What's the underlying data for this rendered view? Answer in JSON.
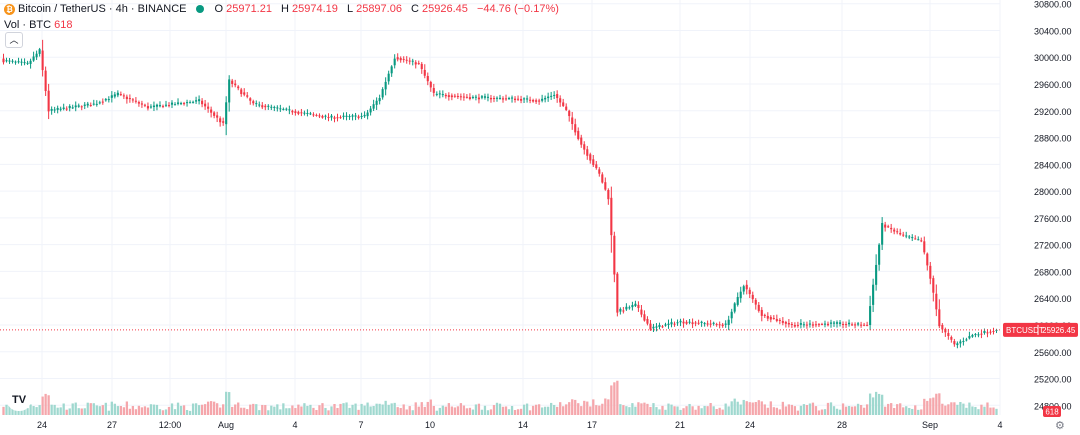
{
  "header": {
    "coin_glyph": "₿",
    "symbol": "Bitcoin / TetherUS · 4h · BINANCE",
    "ohlc": [
      {
        "label": "O",
        "value": "25971.21"
      },
      {
        "label": "H",
        "value": "25974.19"
      },
      {
        "label": "L",
        "value": "25897.06"
      },
      {
        "label": "C",
        "value": "25926.45"
      }
    ],
    "change": "−44.76 (−0.17%)"
  },
  "volume_legend": {
    "label": "Vol · BTC",
    "value": "618"
  },
  "collapse_glyph": "︿",
  "logo_text": "TV",
  "settings_glyph": "⚙",
  "colors": {
    "up": "#089981",
    "down": "#f23645",
    "up_vol": "#9fd8cf",
    "down_vol": "#f5a6ab"
  },
  "price_axis": {
    "labels": [
      "30800.00",
      "30400.00",
      "30000.00",
      "29600.00",
      "29200.00",
      "28800.00",
      "28400.00",
      "28000.00",
      "27600.00",
      "27200.00",
      "26800.00",
      "26400.00",
      "26000.00",
      "25600.00",
      "25200.00",
      "24800.00"
    ],
    "last_symbol": "BTCUSDT",
    "last_price": "25926.45",
    "volume_badge": "618"
  },
  "time_axis": [
    "24",
    "27",
    "12:00",
    "Aug",
    "4",
    "7",
    "10",
    "14",
    "17",
    "21",
    "24",
    "28",
    "Sep",
    "4"
  ],
  "chart_data": {
    "type": "candlestick",
    "interval": "4h",
    "ylim": [
      24700,
      30900
    ],
    "last_close": 25926.45,
    "anchors": [
      [
        0,
        29950
      ],
      [
        8,
        29900
      ],
      [
        12,
        30100
      ],
      [
        15,
        29200
      ],
      [
        30,
        29300
      ],
      [
        38,
        29450
      ],
      [
        48,
        29250
      ],
      [
        65,
        29350
      ],
      [
        73,
        29000
      ],
      [
        75,
        29650
      ],
      [
        83,
        29300
      ],
      [
        95,
        29200
      ],
      [
        108,
        29100
      ],
      [
        120,
        29120
      ],
      [
        125,
        29400
      ],
      [
        130,
        30000
      ],
      [
        138,
        29900
      ],
      [
        143,
        29450
      ],
      [
        155,
        29400
      ],
      [
        170,
        29380
      ],
      [
        178,
        29350
      ],
      [
        183,
        29450
      ],
      [
        187,
        29200
      ],
      [
        192,
        28700
      ],
      [
        198,
        28250
      ],
      [
        201,
        27900
      ],
      [
        204,
        26200
      ],
      [
        210,
        26300
      ],
      [
        215,
        25950
      ],
      [
        225,
        26050
      ],
      [
        240,
        26000
      ],
      [
        246,
        26600
      ],
      [
        252,
        26150
      ],
      [
        262,
        26000
      ],
      [
        275,
        26020
      ],
      [
        287,
        26000
      ],
      [
        292,
        27500
      ],
      [
        298,
        27350
      ],
      [
        305,
        27250
      ],
      [
        308,
        26700
      ],
      [
        311,
        26000
      ],
      [
        316,
        25700
      ],
      [
        322,
        25850
      ],
      [
        330,
        25930
      ]
    ]
  }
}
